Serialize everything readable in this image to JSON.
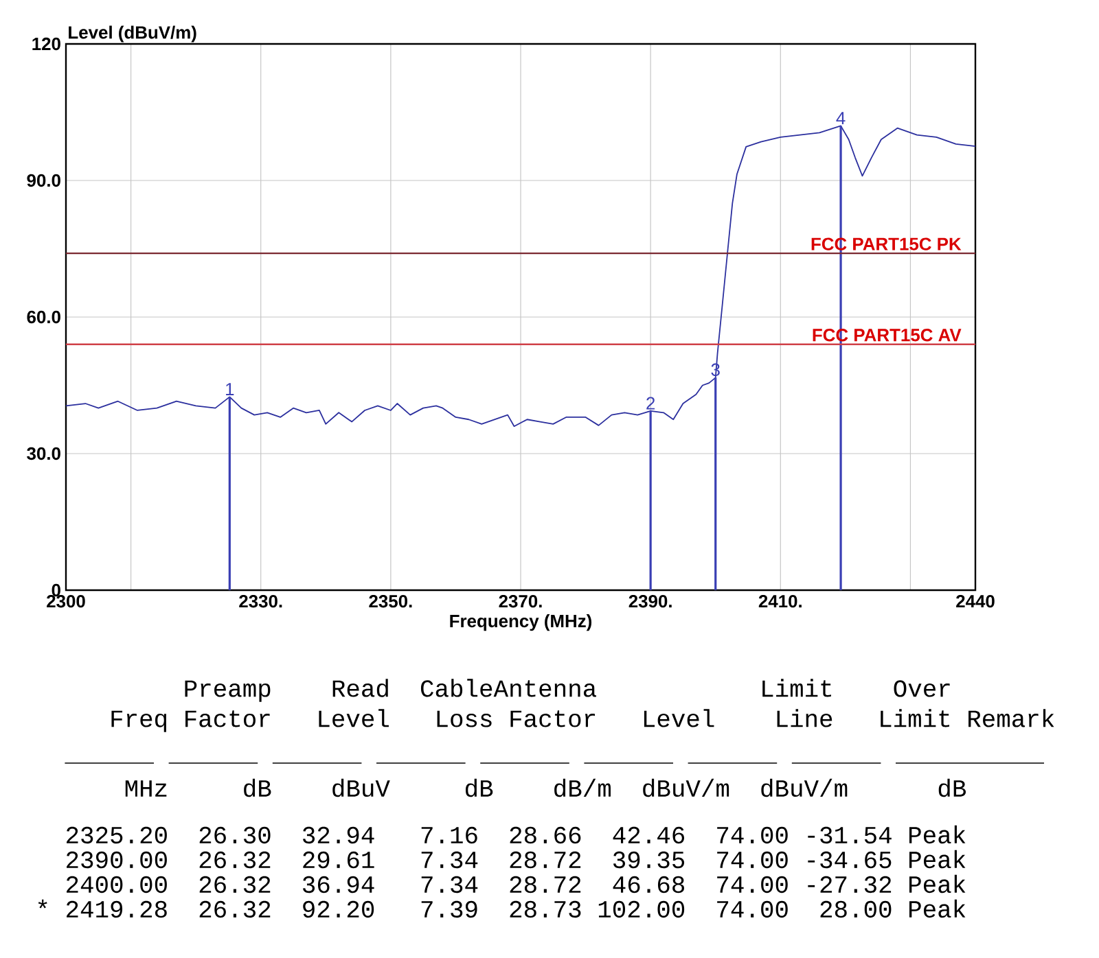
{
  "chart_data": {
    "type": "line",
    "xlabel": "Frequency (MHz)",
    "ylabel": "Level (dBuV/m)",
    "xlim": [
      2300,
      2440
    ],
    "ylim": [
      0,
      120
    ],
    "xticks": [
      2300,
      {
        "value": 2310,
        "label": null
      },
      {
        "value": 2330,
        "label": "2330."
      },
      {
        "value": 2350,
        "label": "2350."
      },
      {
        "value": 2370,
        "label": "2370."
      },
      {
        "value": 2390,
        "label": "2390."
      },
      {
        "value": 2410,
        "label": "2410."
      },
      {
        "value": 2430,
        "label": null
      },
      2440
    ],
    "yticks": [
      0,
      {
        "value": 30,
        "label": "30.0"
      },
      {
        "value": 60,
        "label": "60.0"
      },
      {
        "value": 90,
        "label": "90.0"
      },
      120
    ],
    "grid": true,
    "series": [
      {
        "color": "#2b2f9e",
        "x": [
          2300,
          2303,
          2305,
          2308,
          2311,
          2314,
          2317,
          2320,
          2323,
          2325.2,
          2327,
          2329,
          2331,
          2333,
          2335,
          2337,
          2339,
          2340,
          2342,
          2344,
          2346,
          2348,
          2350,
          2351,
          2353,
          2355,
          2357,
          2358,
          2360,
          2362,
          2364,
          2366,
          2368,
          2369,
          2371,
          2373,
          2375,
          2377,
          2380,
          2382,
          2384,
          2386,
          2388,
          2390,
          2392,
          2393.5,
          2395,
          2397,
          2398,
          2399,
          2400,
          2400.3,
          2401,
          2401.9,
          2402.6,
          2403.3,
          2404.7,
          2407,
          2410,
          2413,
          2416,
          2419.28,
          2420.5,
          2421.5,
          2422.6,
          2424,
          2425.5,
          2428,
          2431,
          2434,
          2437,
          2440
        ],
        "values": [
          40.5,
          41,
          40,
          41.5,
          39.5,
          40,
          41.5,
          40.5,
          40,
          42.46,
          40,
          38.5,
          39,
          38,
          40,
          39,
          39.5,
          36.5,
          39,
          37,
          39.5,
          40.5,
          39.5,
          41,
          38.5,
          40,
          40.5,
          40,
          38,
          37.5,
          36.5,
          37.5,
          38.5,
          36,
          37.5,
          37,
          36.5,
          38,
          38,
          36.2,
          38.5,
          39,
          38.5,
          39.35,
          39,
          37.5,
          41,
          43,
          45,
          45.5,
          46.68,
          52,
          62,
          75,
          85,
          91.4,
          97.4,
          98.5,
          99.5,
          100,
          100.5,
          102,
          99,
          95,
          91,
          95,
          99,
          101.5,
          100,
          99.5,
          98,
          97.5
        ]
      },
      {
        "type": "bar",
        "color": "#3a3fb4",
        "x": [
          2325.2,
          2390,
          2400,
          2419.28
        ],
        "values": [
          42.46,
          39.35,
          46.68,
          102.0
        ]
      }
    ],
    "ref_lines": [
      {
        "axis": "y",
        "value": 74,
        "label": "FCC PART15C PK",
        "color": "#7a2830"
      },
      {
        "axis": "y",
        "value": 54,
        "label": "FCC PART15C AV",
        "color": "#d04048"
      }
    ],
    "annotations": [
      {
        "text": "1",
        "x": 2325.2,
        "y": 42.46
      },
      {
        "text": "2",
        "x": 2390,
        "y": 39.35
      },
      {
        "text": "3",
        "x": 2400,
        "y": 46.68
      },
      {
        "text": "4",
        "x": 2419.28,
        "y": 102.0
      },
      "           Preamp    Read  CableAntenna           Limit    Over",
      "      Freq Factor   Level   Loss Factor   Level    Line   Limit Remark",
      "       MHz     dB    dBuV     dB    dB/m  dBuV/m  dBuV/m      dB",
      "   2325.20  26.30  32.94   7.16  28.66  42.46  74.00 -31.54 Peak",
      "   2390.00  26.32  29.61   7.34  28.72  39.35  74.00 -34.65 Peak",
      "   2400.00  26.32  36.94   7.34  28.72  46.68  74.00 -27.32 Peak",
      " * 2419.28  26.32  92.20   7.39  28.73 102.00  74.00  28.00 Peak"
    ]
  }
}
